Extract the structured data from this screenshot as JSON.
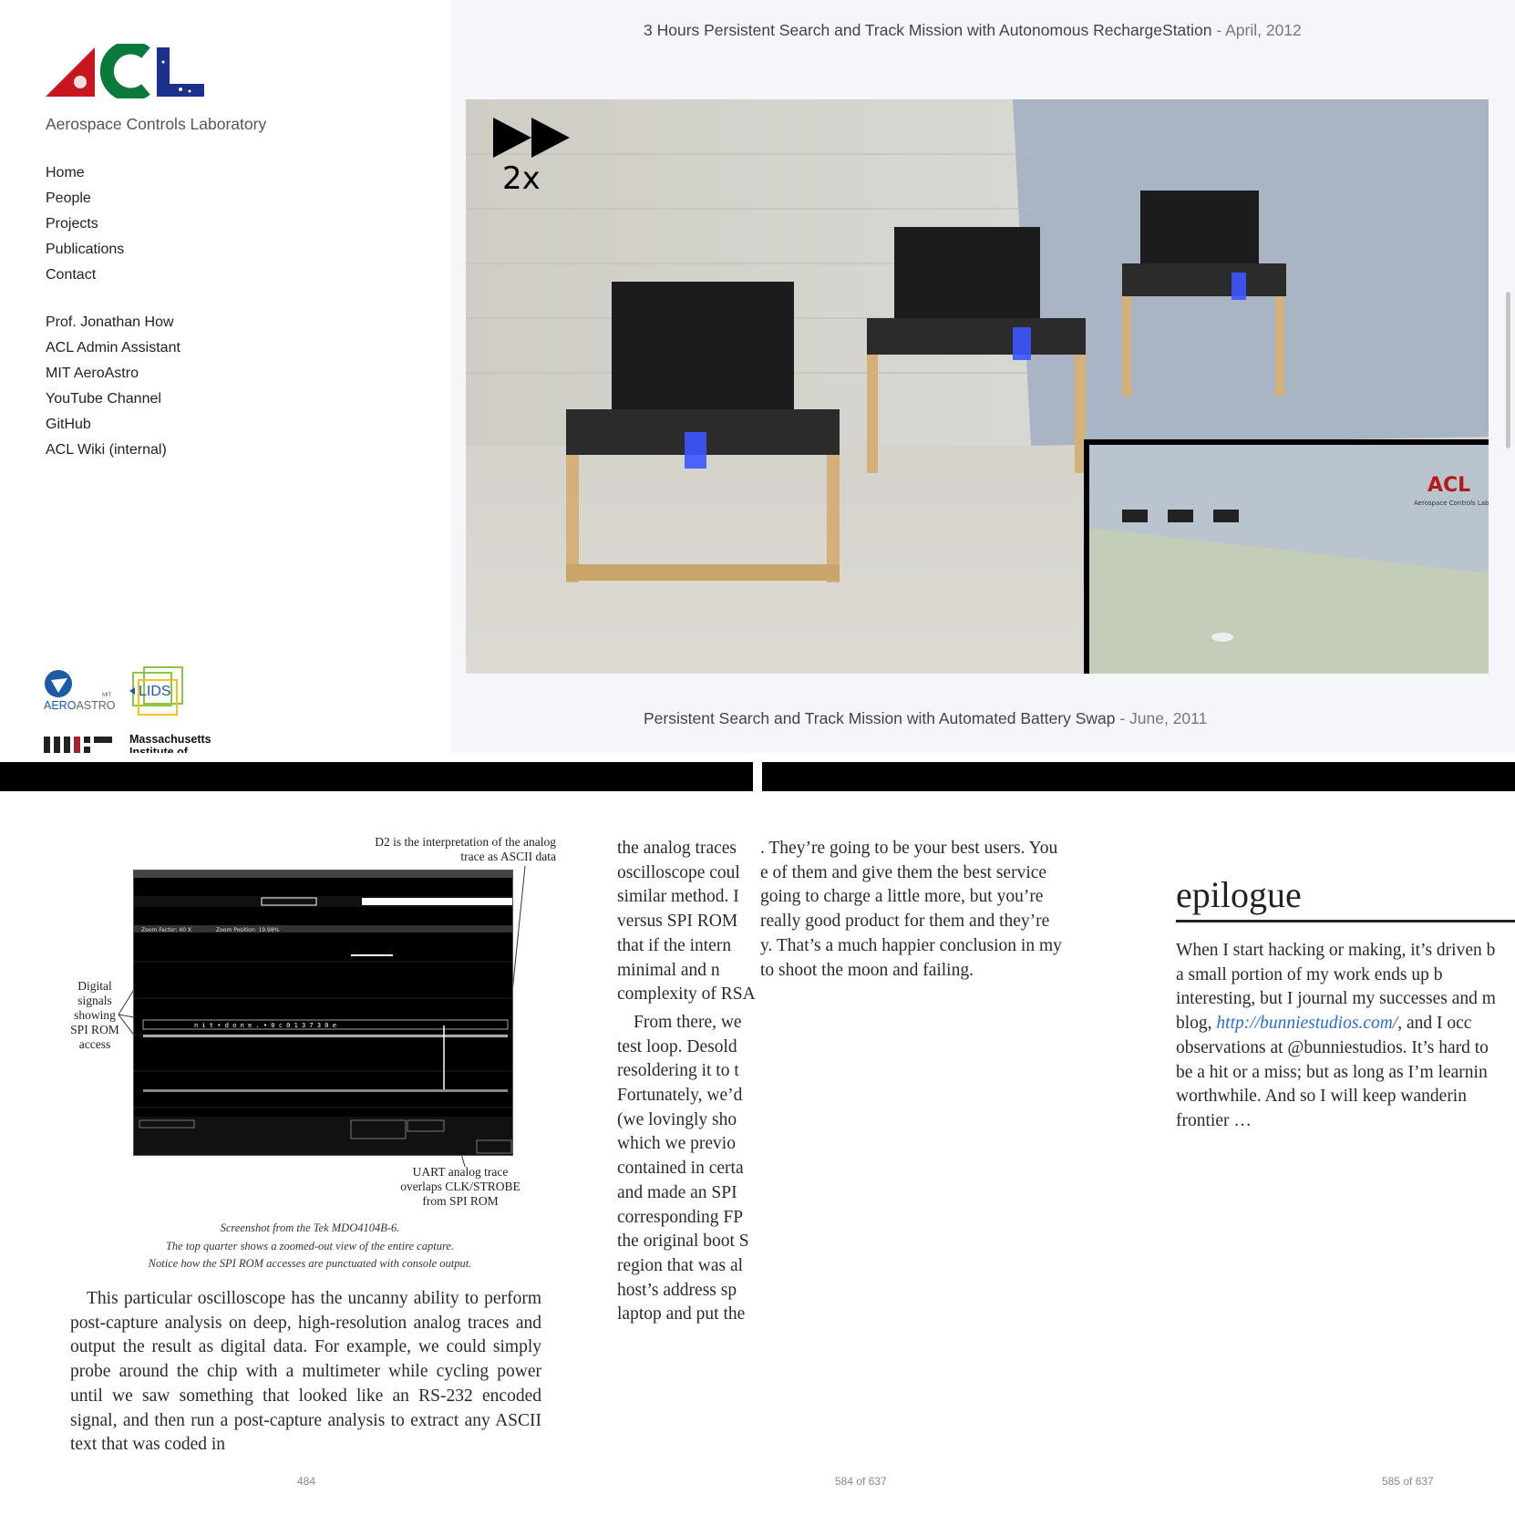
{
  "website": {
    "brand_colors": {
      "a_red": "#c8161e",
      "c_green": "#0a7a3c",
      "l_blue": "#1c2f8a"
    },
    "tagline": "Aerospace Controls Laboratory",
    "nav_main": [
      {
        "label": "Home"
      },
      {
        "label": "People"
      },
      {
        "label": "Projects"
      },
      {
        "label": "Publications"
      },
      {
        "label": "Contact"
      }
    ],
    "nav_links": [
      {
        "label": "Prof. Jonathan How"
      },
      {
        "label": "ACL Admin Assistant"
      },
      {
        "label": "MIT AeroAstro"
      },
      {
        "label": "YouTube Channel"
      },
      {
        "label": "GitHub"
      },
      {
        "label": "ACL Wiki (internal)"
      }
    ],
    "logos": {
      "aeroastro_small": "MIT",
      "aeroastro_a": "AERO",
      "aeroastro_b": "ASTRO",
      "lids": "LIDS",
      "mit_line1": "Massachusetts",
      "mit_line2": "Institute of"
    },
    "video1": {
      "title": "3 Hours Persistent Search and Track Mission with Autonomous RechargeStation",
      "sep": " - ",
      "date": "April, 2012"
    },
    "video2": {
      "title": "Persistent Search and Track Mission with Automated Battery Swap",
      "sep": " - ",
      "date": "June, 2011"
    },
    "video_overlay": {
      "speed": "2x",
      "inset_logo": "ACL",
      "inset_caption": "Aerospace Controls Lab"
    }
  },
  "book1": {
    "scope_annotations": {
      "top": "D2 is the interpretation of the analog trace as ASCII data",
      "left": "Digital signals showing SPI ROM access",
      "bottom": "UART analog trace overlaps CLK/STROBE from SPI ROM"
    },
    "scope_screen": {
      "zoom_factor": "Zoom Factor: 40 X",
      "zoom_position": "Zoom Position: 19.98%",
      "decoded": "n i t • d o n e . • 0 c 0 1 3 7 3 0 e"
    },
    "figure_caption": [
      "Screenshot from the Tek MDO4104B-6.",
      "The top quarter shows a zoomed-out view of the entire capture.",
      "Notice how the SPI ROM accesses are punctuated with console output."
    ],
    "paragraph": "This particular oscilloscope has the uncanny ability to perform post-capture analysis on deep, high-resolution analog traces and output the result as digital data. For example, we could simply probe around the chip with a multimeter while cycling power until we saw something that looked like an RS-232 encoded signal, and then run a post-capture analysis to extract any ASCII text that was coded in",
    "page": "484"
  },
  "book2": {
    "left_fragments": [
      "the analog traces",
      "oscilloscope coul",
      "similar method. I",
      "versus SPI ROM",
      "that if the intern",
      "minimal and n",
      "complexity of RSA",
      "",
      "From there, we",
      "test loop. Desold",
      "resoldering it to t",
      "Fortunately, we’d",
      "(we lovingly sho",
      "which we previo",
      "contained in certa",
      "and made an SPI",
      "corresponding FP",
      "the original boot S",
      "region that was al",
      "host’s address sp",
      "laptop and put the"
    ],
    "right_fragments": [
      ". They’re going to be your best users. You",
      "e of them and give them the best service",
      "going to charge a little more, but you’re",
      "really good product for them and they’re",
      "y. That’s a much happier conclusion in my",
      "to shoot the moon and failing."
    ],
    "page": "584 of 637"
  },
  "book3": {
    "heading": "epilogue",
    "lines": [
      "When I start hacking or making, it’s driven b",
      "a small portion of my work ends up b",
      "interesting, but I journal my successes and m",
      "blog, ",
      "observations at @bunniestudios. It’s hard to",
      "be a hit or a miss; but as long as I’m learnin",
      "worthwhile. And so I will keep wanderin",
      "frontier …"
    ],
    "link": "http://bunniestudios.com/",
    "link_after": ", and I occ",
    "page": "585 of 637"
  }
}
